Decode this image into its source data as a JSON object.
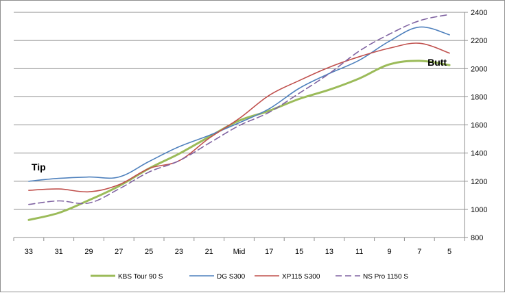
{
  "chart_data": {
    "type": "line",
    "categories": [
      "33",
      "31",
      "29",
      "27",
      "25",
      "23",
      "21",
      "Mid",
      "17",
      "15",
      "13",
      "11",
      "9",
      "7",
      "5"
    ],
    "ylim": [
      800,
      2400
    ],
    "yticks": [
      800,
      1000,
      1200,
      1400,
      1600,
      1800,
      2000,
      2200,
      2400
    ],
    "y_axis_position": "right",
    "grid": "horizontal",
    "legend_position": "bottom",
    "colors": {
      "kbs": "#9bbb59",
      "dg": "#4f81bd",
      "xp": "#c0504d",
      "ns": "#8064a2",
      "grid": "#8c8c8c",
      "axis": "#8c8c8c"
    },
    "series": [
      {
        "name": "KBS Tour 90 S",
        "key": "kbs",
        "dashed": false,
        "width": 3,
        "values": [
          925,
          975,
          1065,
          1165,
          1290,
          1395,
          1515,
          1630,
          1700,
          1785,
          1850,
          1930,
          2030,
          2055,
          2025
        ]
      },
      {
        "name": "DG S300",
        "key": "dg",
        "dashed": false,
        "width": 1.6,
        "values": [
          1200,
          1220,
          1230,
          1230,
          1340,
          1445,
          1525,
          1615,
          1715,
          1860,
          1965,
          2060,
          2195,
          2295,
          2240
        ]
      },
      {
        "name": "XP115 S300",
        "key": "xp",
        "dashed": false,
        "width": 1.6,
        "values": [
          1135,
          1145,
          1125,
          1175,
          1290,
          1345,
          1505,
          1645,
          1810,
          1915,
          2010,
          2085,
          2145,
          2180,
          2110
        ]
      },
      {
        "name": "NS Pro 1150 S",
        "key": "ns",
        "dashed": true,
        "width": 1.6,
        "values": [
          1035,
          1060,
          1045,
          1145,
          1265,
          1345,
          1470,
          1595,
          1690,
          1825,
          1965,
          2125,
          2245,
          2340,
          2385
        ]
      }
    ],
    "annotations": [
      {
        "text": "Tip",
        "near_category": "33",
        "value": 1300
      },
      {
        "text": "Butt",
        "near_category": "5",
        "value": 2045
      }
    ]
  }
}
